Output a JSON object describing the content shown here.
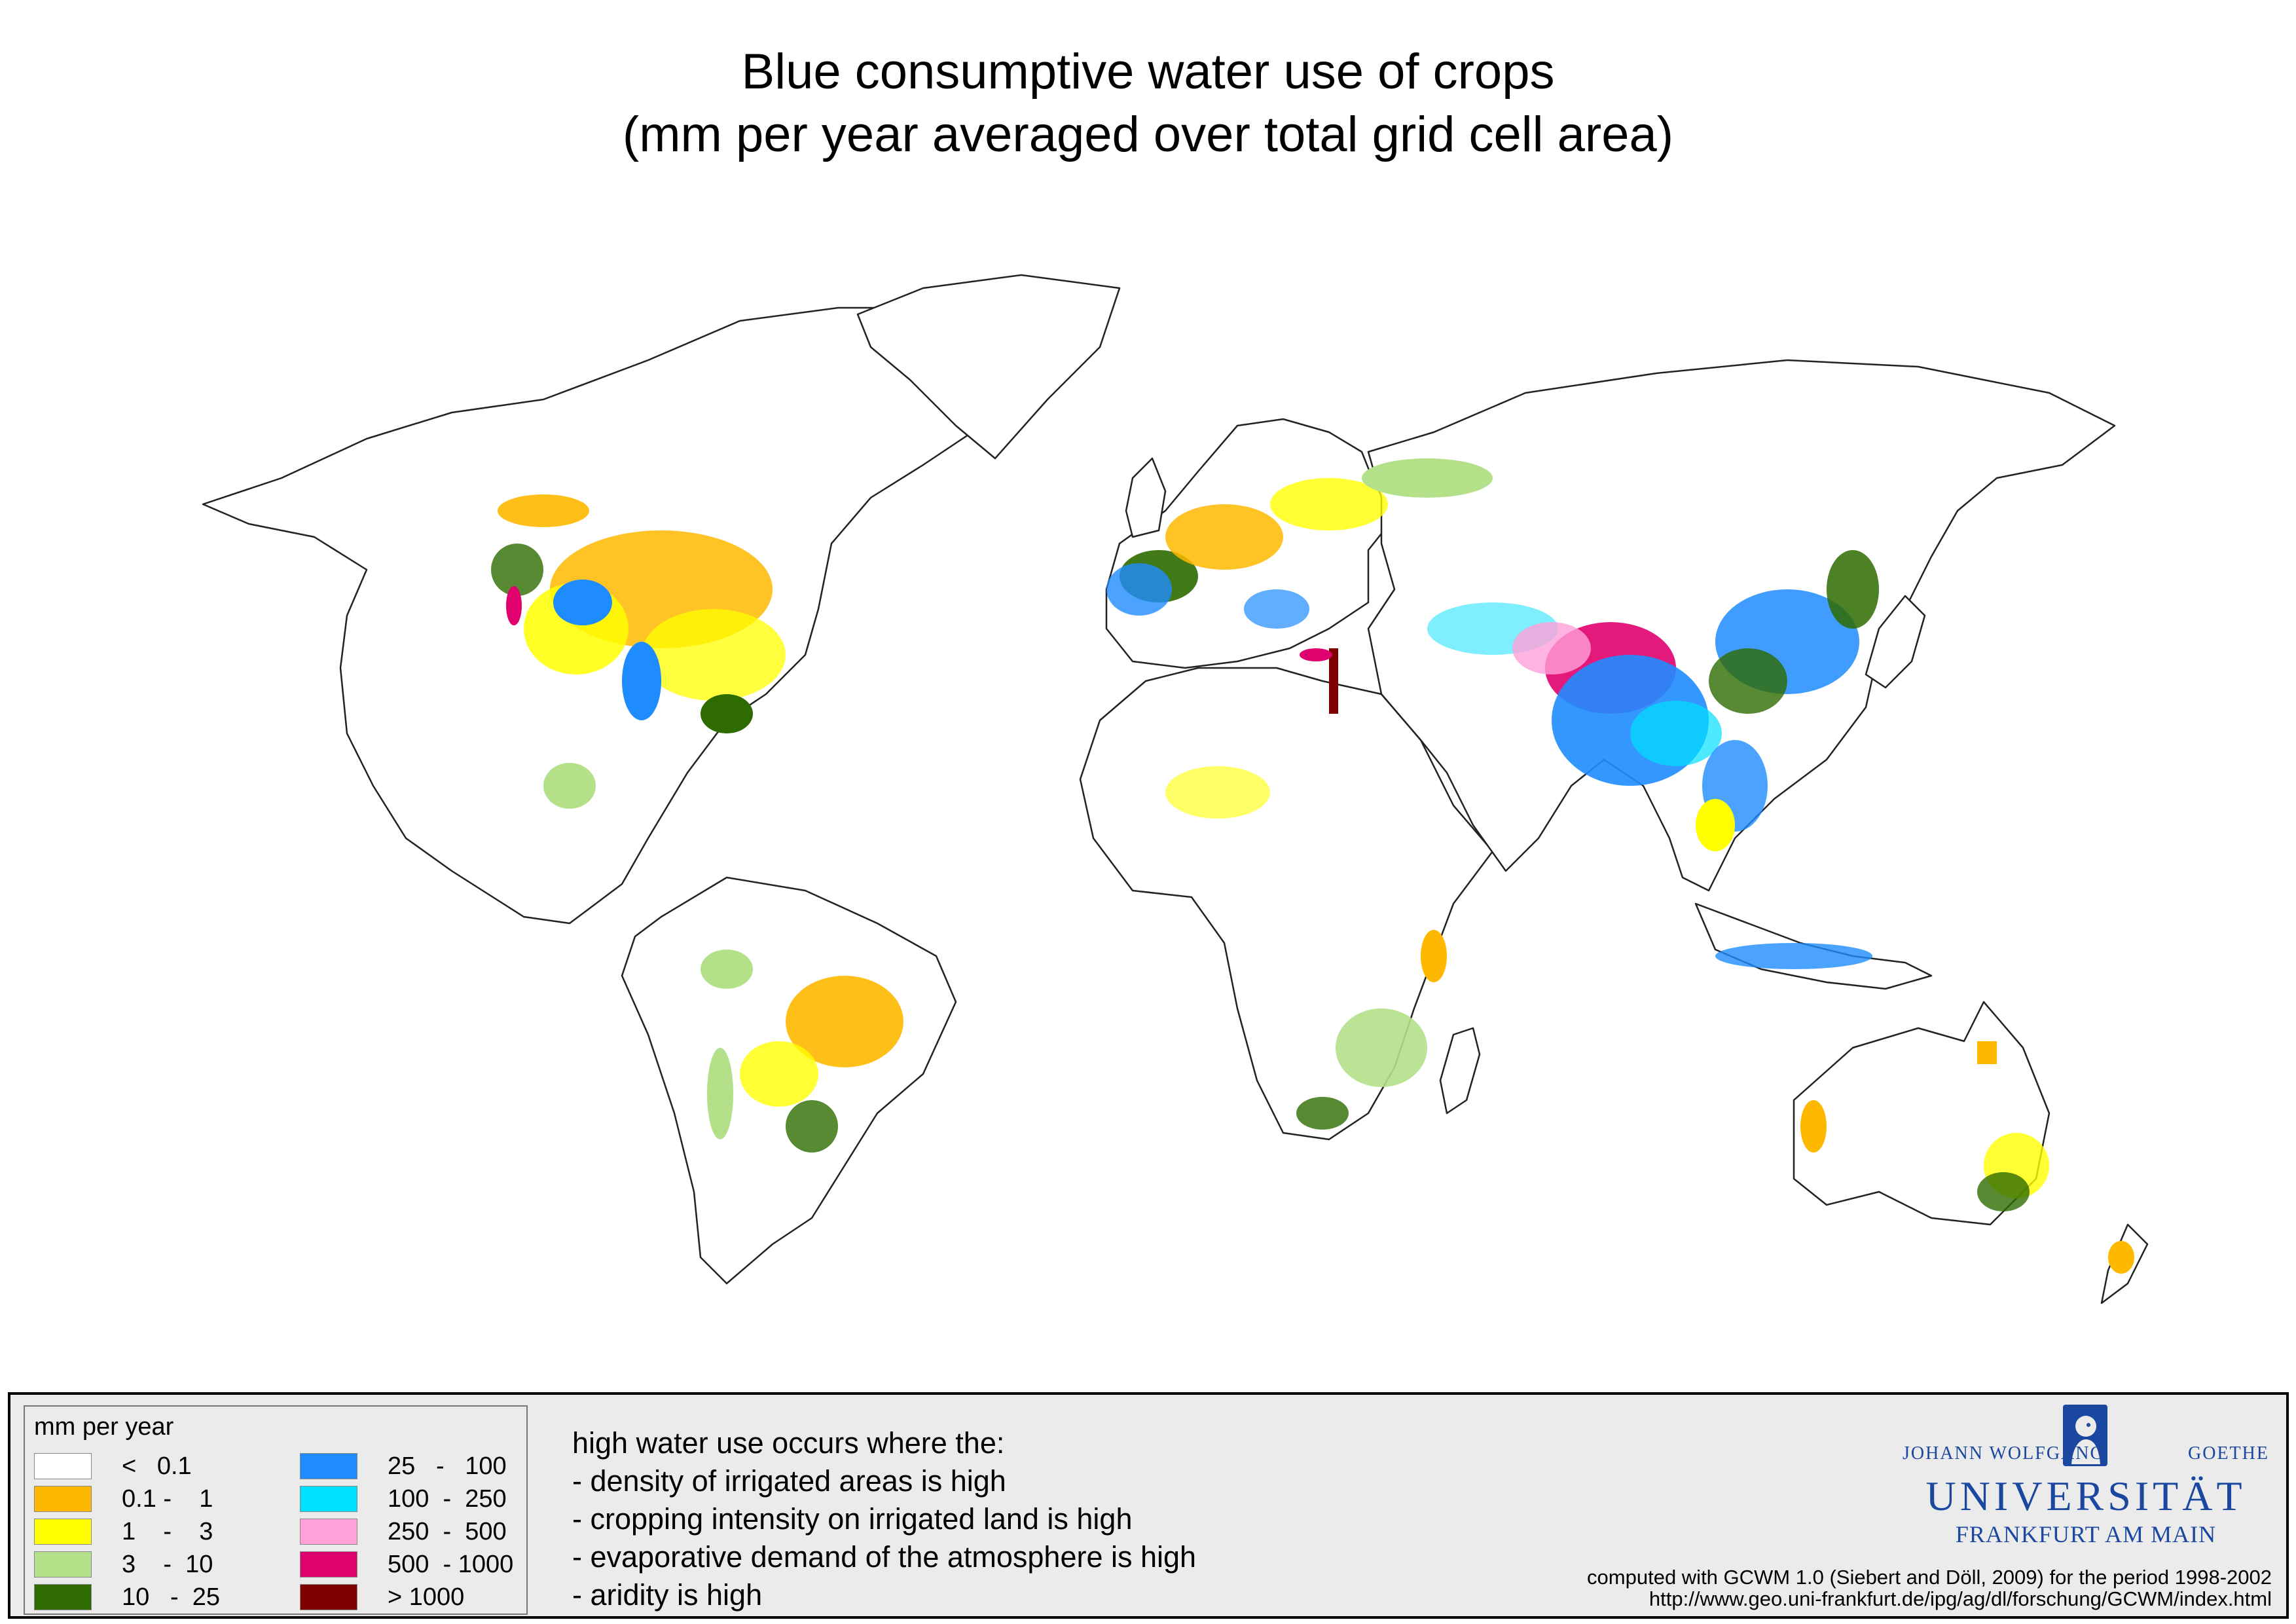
{
  "title": {
    "line1": "Blue consumptive water use of crops",
    "line2": "(mm per year averaged over total grid cell area)"
  },
  "legend": {
    "title": "mm per year",
    "items": [
      {
        "label": "<   0.1",
        "color": "#ffffff"
      },
      {
        "label": "0.1 -    1",
        "color": "#ffb800"
      },
      {
        "label": "1    -    3",
        "color": "#ffff00"
      },
      {
        "label": "3    -  10",
        "color": "#b4e08a"
      },
      {
        "label": "10   -  25",
        "color": "#2e6b00"
      },
      {
        "label": "25   -   100",
        "color": "#1e8cff"
      },
      {
        "label": "100  -  250",
        "color": "#00e0ff"
      },
      {
        "label": "250  -  500",
        "color": "#ffa0d8"
      },
      {
        "label": "500  - 1000",
        "color": "#e0006e"
      },
      {
        "label": "> 1000",
        "color": "#800000"
      }
    ]
  },
  "notes": {
    "heading": "high water use occurs where the:",
    "items": [
      "- density of irrigated areas is high",
      "- cropping intensity on irrigated land is high",
      "- evaporative demand of the atmosphere is high",
      "- aridity is high"
    ]
  },
  "university": {
    "name_left": "JOHANN WOLFGANG",
    "name_right": "GOETHE",
    "main": "UNIVERSITÄT",
    "city": "FRANKFURT AM MAIN",
    "color": "#1a47a0"
  },
  "credits": {
    "line1": "computed with GCWM 1.0 (Siebert and Döll, 2009) for the period 1998-2002",
    "line2": "http://www.geo.uni-frankfurt.de/ipg/ag/dl/forschung/GCWM/index.html"
  }
}
